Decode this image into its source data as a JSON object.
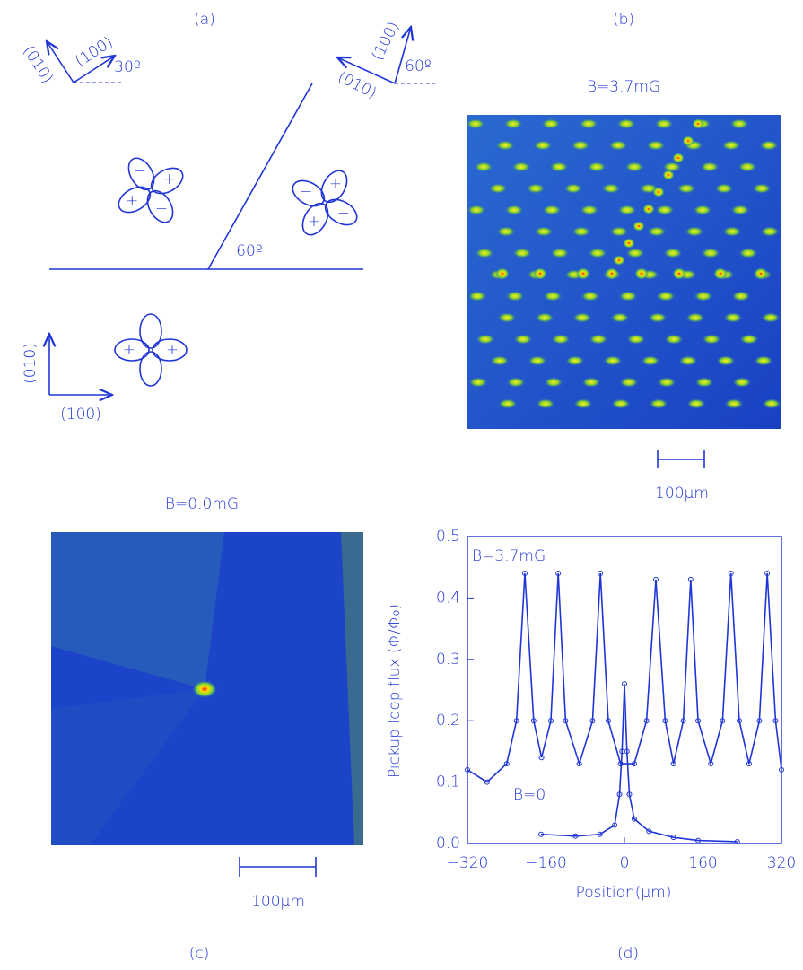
{
  "panel_a": {
    "label": "(a)",
    "top_left": {
      "x_axis": "(100)",
      "y_axis": "(010)",
      "angle": "30º"
    },
    "top_right": {
      "x_axis": "(100)",
      "y_axis": "(010)",
      "angle": "60º"
    },
    "boundary_angle": "60º",
    "bottom": {
      "x_axis": "(100)",
      "y_axis": "(010)"
    },
    "signs": {
      "plus": "+",
      "minus": "−"
    }
  },
  "panel_b": {
    "label": "(b)",
    "title": "B=3.7mG",
    "scale_bar": "100μm"
  },
  "panel_c": {
    "label": "(c)",
    "title": "B=0.0mG",
    "scale_bar": "100μm"
  },
  "panel_d": {
    "label": "(d)"
  },
  "chart_data": {
    "type": "line",
    "xlabel": "Position(μm)",
    "ylabel": "Pickup loop flux (Φ/Φ₀)",
    "xlim": [
      -320,
      320
    ],
    "ylim": [
      0,
      0.5
    ],
    "xticks": [
      {
        "value": -320,
        "label": "−320"
      },
      {
        "value": -160,
        "label": "−160"
      },
      0,
      160,
      320
    ],
    "yticks": [
      {
        "value": 0,
        "label": "0.0"
      },
      0.1,
      0.2,
      0.3,
      0.4,
      0.5
    ],
    "series": [
      {
        "name": "B=3.7mG",
        "color": "#1f35d6",
        "x": [
          -320,
          -280,
          -240,
          -220,
          -203,
          -185,
          -169,
          -150,
          -135,
          -120,
          -92,
          -65,
          -49,
          -33,
          -8,
          20,
          45,
          64,
          83,
          100,
          120,
          135,
          150,
          176,
          200,
          217,
          234,
          254,
          275,
          291,
          308,
          320
        ],
        "values": [
          0.12,
          0.1,
          0.13,
          0.2,
          0.44,
          0.2,
          0.14,
          0.2,
          0.44,
          0.2,
          0.13,
          0.2,
          0.44,
          0.2,
          0.13,
          0.13,
          0.2,
          0.43,
          0.2,
          0.13,
          0.2,
          0.43,
          0.2,
          0.13,
          0.2,
          0.44,
          0.2,
          0.13,
          0.2,
          0.44,
          0.2,
          0.12
        ]
      },
      {
        "name": "B=0",
        "color": "#1f35d6",
        "x": [
          -170,
          -100,
          -50,
          -20,
          -10,
          -5,
          0,
          5,
          10,
          20,
          50,
          100,
          150,
          230
        ],
        "values": [
          0.015,
          0.012,
          0.015,
          0.03,
          0.08,
          0.15,
          0.26,
          0.15,
          0.08,
          0.04,
          0.02,
          0.01,
          0.005,
          0.003
        ]
      }
    ]
  }
}
